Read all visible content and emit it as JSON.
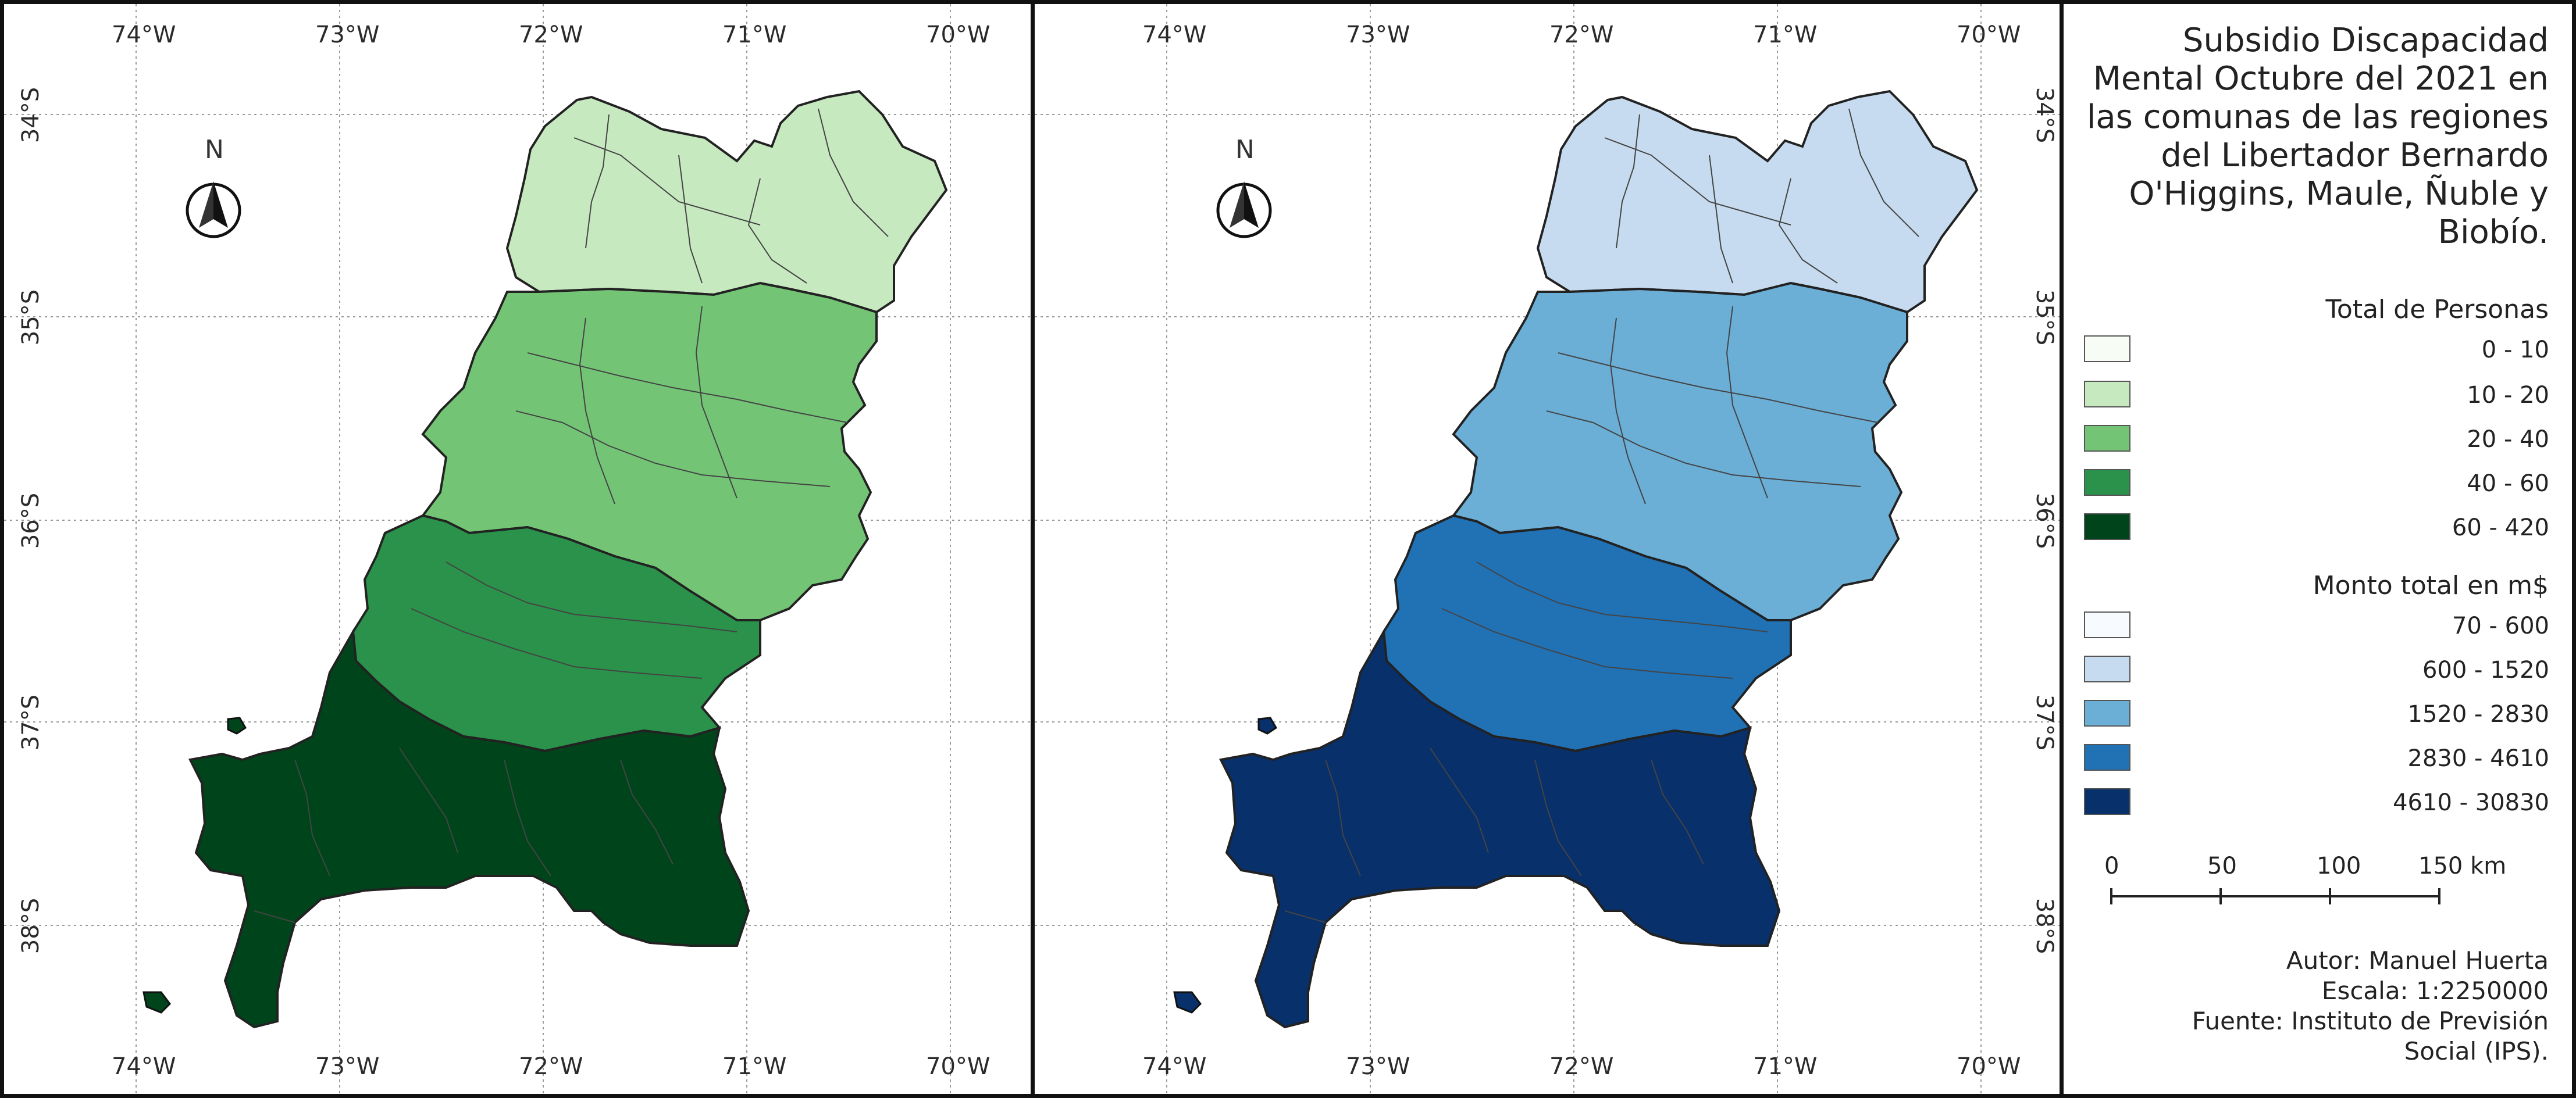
{
  "left_map": {
    "lon_labels": [
      "74°W",
      "73°W",
      "72°W",
      "71°W",
      "70°W"
    ],
    "lat_labels": [
      "34°S",
      "35°S",
      "36°S",
      "37°S",
      "38°S"
    ],
    "north": "N"
  },
  "right_map": {
    "lon_labels": [
      "74°W",
      "73°W",
      "72°W",
      "71°W",
      "70°W"
    ],
    "lat_labels": [
      "34°S",
      "35°S",
      "36°S",
      "37°S",
      "38°S"
    ],
    "north": "N"
  },
  "legend": {
    "title": "Subsidio Discapacidad Mental Octubre del 2021 en las comunas de las regiones del Libertador Bernardo O'Higgins, Maule, Ñuble y Biobío.",
    "personas": {
      "heading": "Total de Personas",
      "items": [
        {
          "label": "0 - 10",
          "color": "#f7fcf5"
        },
        {
          "label": "10 - 20",
          "color": "#c7e9c0"
        },
        {
          "label": "20 - 40",
          "color": "#74c476"
        },
        {
          "label": "40 - 60",
          "color": "#2a924a"
        },
        {
          "label": "60 - 420",
          "color": "#00441b"
        }
      ]
    },
    "monto": {
      "heading": "Monto total en m$",
      "items": [
        {
          "label": "70 - 600",
          "color": "#f7fbff"
        },
        {
          "label": "600 - 1520",
          "color": "#c6dbef"
        },
        {
          "label": "1520 - 2830",
          "color": "#6baed6"
        },
        {
          "label": "2830 - 4610",
          "color": "#2171b5"
        },
        {
          "label": "4610 - 30830",
          "color": "#08306b"
        }
      ]
    },
    "scale": {
      "ticks": [
        "0",
        "50",
        "100"
      ],
      "last": "150 km"
    },
    "credits": {
      "line1": "Autor: Manuel Huerta",
      "line2": "Escala: 1:2250000",
      "line3": "Fuente: Instituto de Previsión",
      "line4": "Social (IPS)."
    }
  }
}
